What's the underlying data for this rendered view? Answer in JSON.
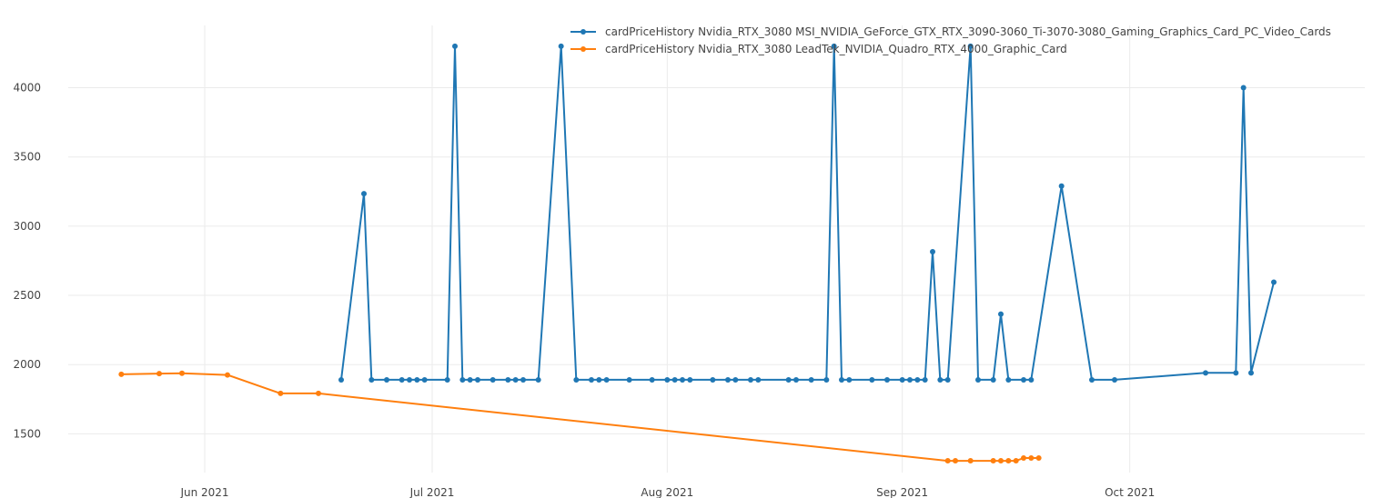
{
  "chart_data": {
    "type": "line",
    "title": "",
    "xlabel": "",
    "ylabel": "",
    "xlim": [
      "2021-05-14",
      "2021-11-01"
    ],
    "ylim": [
      1220,
      4450
    ],
    "x_ticks": [
      {
        "date": "2021-06-01",
        "label": "Jun 2021"
      },
      {
        "date": "2021-07-01",
        "label": "Jul 2021"
      },
      {
        "date": "2021-08-01",
        "label": "Aug 2021"
      },
      {
        "date": "2021-09-01",
        "label": "Sep 2021"
      },
      {
        "date": "2021-10-01",
        "label": "Oct 2021"
      }
    ],
    "y_ticks": [
      1500,
      2000,
      2500,
      3000,
      3500,
      4000
    ],
    "grid": true,
    "legend_position": "top-right",
    "series": [
      {
        "name": "cardPriceHistory Nvidia_RTX_3080 MSI_NVIDIA_GeForce_GTX_RTX_3090-3060_Ti-3070-3080_Gaming_Graphics_Card_PC_Video_Cards",
        "color": "#1f77b4",
        "points": [
          [
            "2021-06-19",
            1890
          ],
          [
            "2021-06-22",
            3235
          ],
          [
            "2021-06-23",
            1890
          ],
          [
            "2021-06-25",
            1890
          ],
          [
            "2021-06-27",
            1890
          ],
          [
            "2021-06-28",
            1890
          ],
          [
            "2021-06-29",
            1890
          ],
          [
            "2021-06-30",
            1890
          ],
          [
            "2021-07-03",
            1890
          ],
          [
            "2021-07-04",
            4300
          ],
          [
            "2021-07-05",
            1890
          ],
          [
            "2021-07-06",
            1890
          ],
          [
            "2021-07-07",
            1890
          ],
          [
            "2021-07-09",
            1890
          ],
          [
            "2021-07-11",
            1890
          ],
          [
            "2021-07-12",
            1890
          ],
          [
            "2021-07-13",
            1890
          ],
          [
            "2021-07-15",
            1890
          ],
          [
            "2021-07-18",
            4300
          ],
          [
            "2021-07-20",
            1890
          ],
          [
            "2021-07-22",
            1890
          ],
          [
            "2021-07-23",
            1890
          ],
          [
            "2021-07-24",
            1890
          ],
          [
            "2021-07-27",
            1890
          ],
          [
            "2021-07-30",
            1890
          ],
          [
            "2021-08-01",
            1890
          ],
          [
            "2021-08-02",
            1890
          ],
          [
            "2021-08-03",
            1890
          ],
          [
            "2021-08-04",
            1890
          ],
          [
            "2021-08-07",
            1890
          ],
          [
            "2021-08-09",
            1890
          ],
          [
            "2021-08-10",
            1890
          ],
          [
            "2021-08-12",
            1890
          ],
          [
            "2021-08-13",
            1890
          ],
          [
            "2021-08-17",
            1890
          ],
          [
            "2021-08-18",
            1890
          ],
          [
            "2021-08-20",
            1890
          ],
          [
            "2021-08-22",
            1890
          ],
          [
            "2021-08-23",
            4300
          ],
          [
            "2021-08-24",
            1890
          ],
          [
            "2021-08-25",
            1890
          ],
          [
            "2021-08-28",
            1890
          ],
          [
            "2021-08-30",
            1890
          ],
          [
            "2021-09-01",
            1890
          ],
          [
            "2021-09-02",
            1890
          ],
          [
            "2021-09-03",
            1890
          ],
          [
            "2021-09-04",
            1890
          ],
          [
            "2021-09-05",
            2815
          ],
          [
            "2021-09-06",
            1890
          ],
          [
            "2021-09-07",
            1890
          ],
          [
            "2021-09-10",
            4300
          ],
          [
            "2021-09-11",
            1890
          ],
          [
            "2021-09-13",
            1890
          ],
          [
            "2021-09-14",
            2365
          ],
          [
            "2021-09-15",
            1890
          ],
          [
            "2021-09-17",
            1890
          ],
          [
            "2021-09-18",
            1890
          ],
          [
            "2021-09-22",
            3290
          ],
          [
            "2021-09-26",
            1890
          ],
          [
            "2021-09-29",
            1890
          ],
          [
            "2021-10-11",
            1940
          ],
          [
            "2021-10-15",
            1940
          ],
          [
            "2021-10-16",
            4000
          ],
          [
            "2021-10-17",
            1940
          ],
          [
            "2021-10-20",
            2595
          ]
        ]
      },
      {
        "name": "cardPriceHistory Nvidia_RTX_3080 LeadTek_NVIDIA_Quadro_RTX_4000_Graphic_Card",
        "color": "#ff7f0e",
        "points": [
          [
            "2021-05-21",
            1930
          ],
          [
            "2021-05-26",
            1935
          ],
          [
            "2021-05-29",
            1937
          ],
          [
            "2021-06-04",
            1925
          ],
          [
            "2021-06-11",
            1792
          ],
          [
            "2021-06-16",
            1792
          ],
          [
            "2021-09-07",
            1305
          ],
          [
            "2021-09-08",
            1305
          ],
          [
            "2021-09-10",
            1305
          ],
          [
            "2021-09-13",
            1305
          ],
          [
            "2021-09-14",
            1305
          ],
          [
            "2021-09-15",
            1305
          ],
          [
            "2021-09-16",
            1305
          ],
          [
            "2021-09-17",
            1325
          ],
          [
            "2021-09-18",
            1325
          ],
          [
            "2021-09-19",
            1325
          ]
        ]
      }
    ]
  }
}
